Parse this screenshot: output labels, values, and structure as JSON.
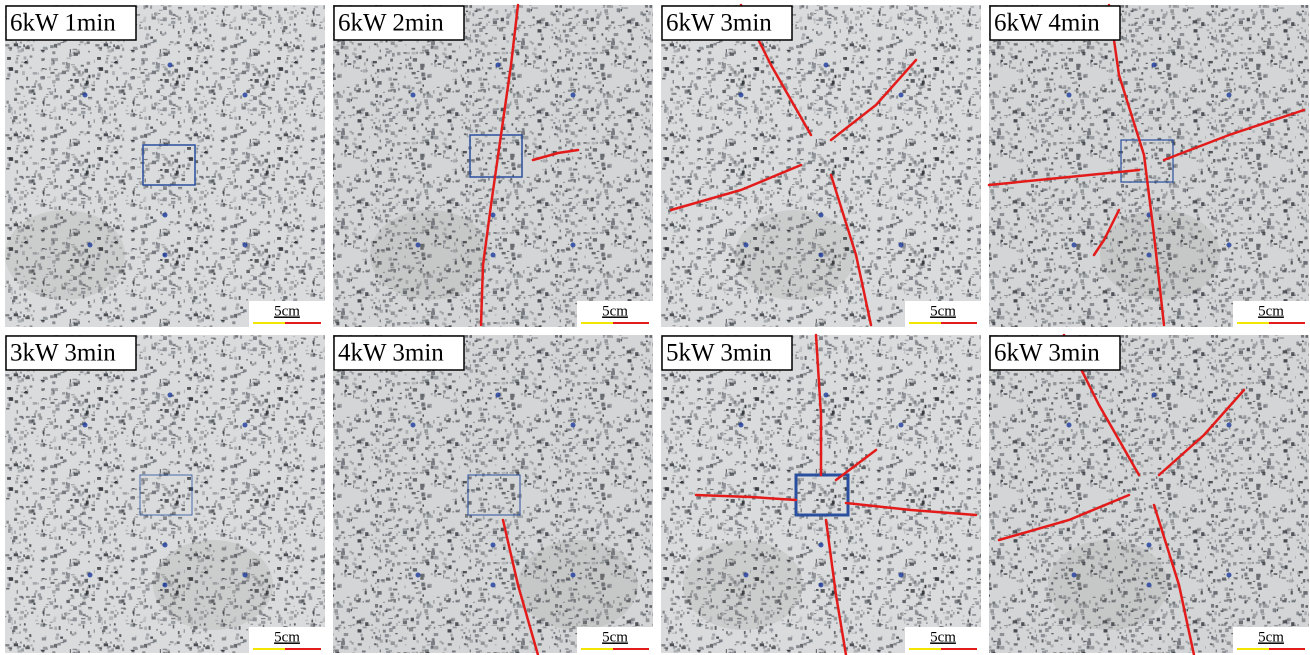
{
  "panels": [
    {
      "label": "6kW 1min",
      "scale": "5cm"
    },
    {
      "label": "6kW 2min",
      "scale": "5cm"
    },
    {
      "label": "6kW 3min",
      "scale": "5cm"
    },
    {
      "label": "6kW 4min",
      "scale": "5cm"
    },
    {
      "label": "3kW 3min",
      "scale": "5cm"
    },
    {
      "label": "4kW 3min",
      "scale": "5cm"
    },
    {
      "label": "5kW 3min",
      "scale": "5cm"
    },
    {
      "label": "6kW 3min",
      "scale": "5cm"
    }
  ]
}
